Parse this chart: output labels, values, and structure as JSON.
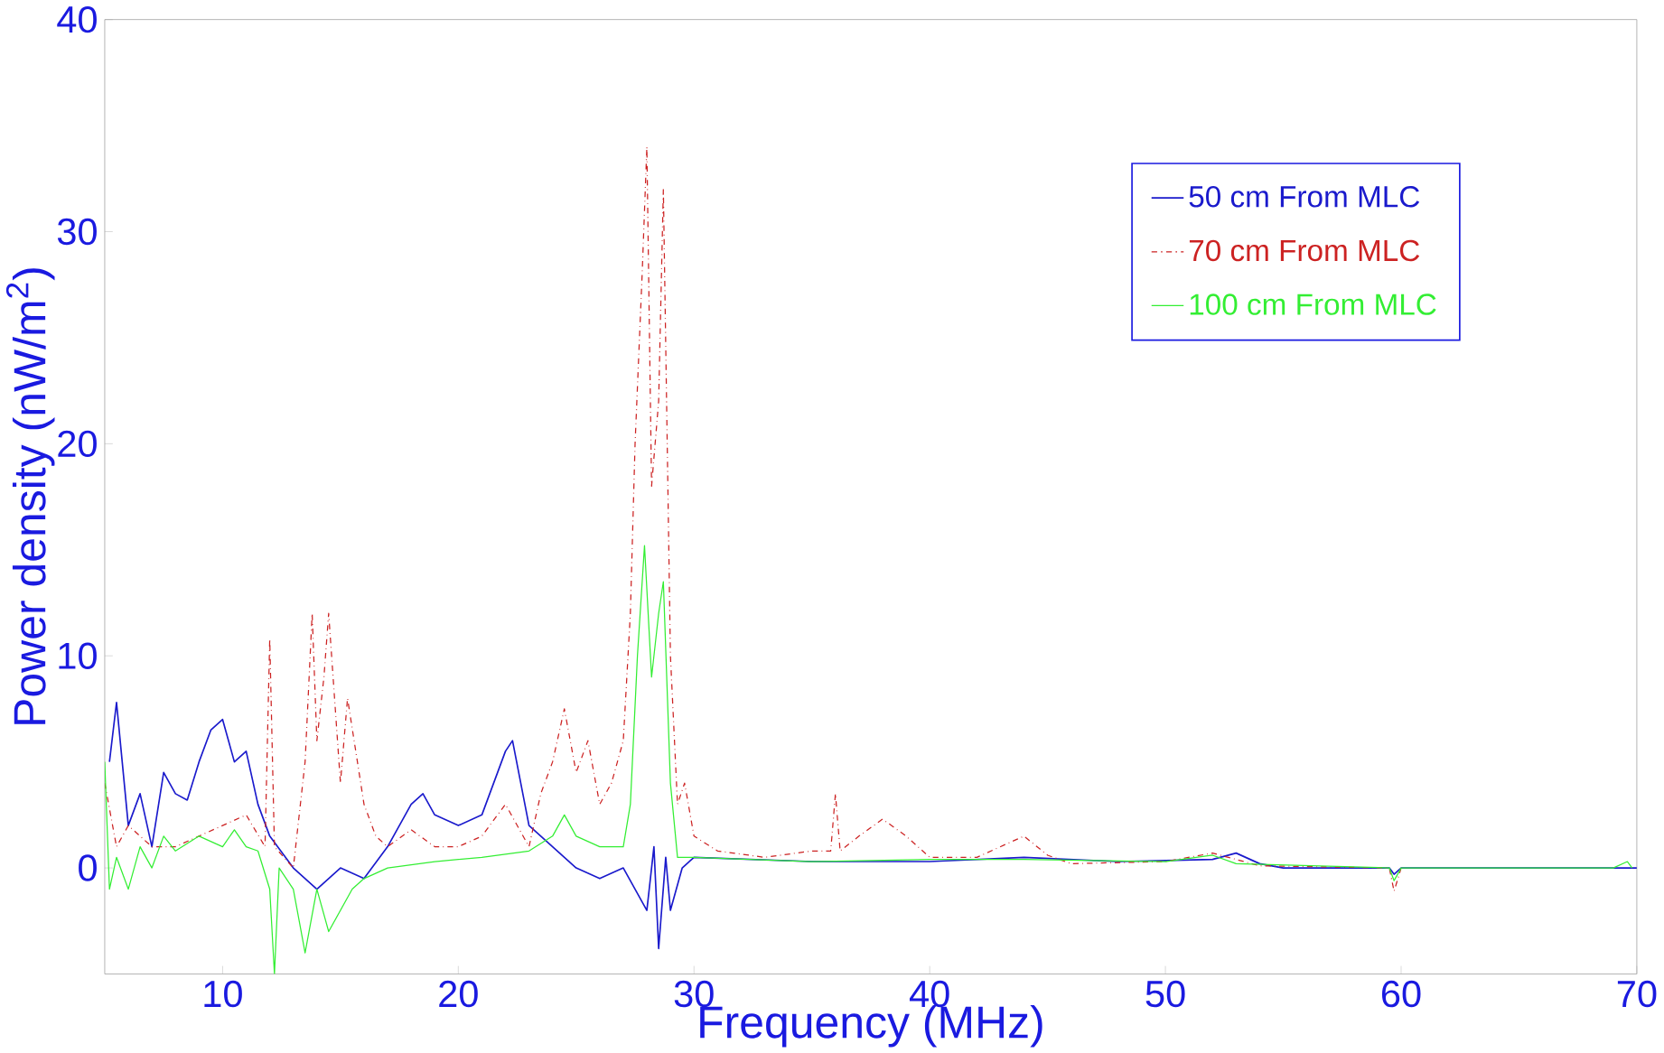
{
  "chart_data": {
    "type": "line",
    "xlabel": "Frequency (MHz)",
    "ylabel": "Power density (nW/m$^{2}$)",
    "xlim": [
      5,
      70
    ],
    "ylim": [
      -5,
      40
    ],
    "xticks": [
      10,
      20,
      30,
      40,
      50,
      60,
      70
    ],
    "yticks": [
      0,
      10,
      20,
      30,
      40
    ],
    "grid": false,
    "legend": "top right",
    "line_style": "solid",
    "series": [
      {
        "name": "50 cm From MLC",
        "color": "#1a1acc",
        "x": [
          5.2,
          5.5,
          6,
          6.5,
          7,
          7.5,
          8,
          8.5,
          9,
          9.5,
          10,
          10.5,
          11,
          11.5,
          12,
          13,
          14,
          15,
          16,
          17,
          18,
          18.5,
          19,
          20,
          21,
          22,
          22.3,
          23,
          24,
          25,
          26,
          27,
          28,
          28.3,
          28.5,
          28.8,
          29,
          29.5,
          30,
          35,
          40,
          44,
          48,
          52,
          53,
          54,
          55,
          59.5,
          59.7,
          60,
          70
        ],
        "values": [
          5,
          7.8,
          2,
          3.5,
          1,
          4.5,
          3.5,
          3.2,
          5,
          6.5,
          7,
          5,
          5.5,
          3,
          1.5,
          0,
          -1,
          0,
          -0.5,
          1,
          3,
          3.5,
          2.5,
          2,
          2.5,
          5.5,
          6,
          2,
          1,
          0,
          -0.5,
          0,
          -2,
          1,
          -3.8,
          0.5,
          -2,
          0,
          0.5,
          0.3,
          0.3,
          0.5,
          0.3,
          0.4,
          0.7,
          0.2,
          0,
          0,
          -0.3,
          0,
          0
        ]
      },
      {
        "name": "70 cm From MLC",
        "color": "#cc2222",
        "line_style": "dashed",
        "x": [
          5,
          5.5,
          6,
          7,
          8,
          9,
          10,
          11,
          11.8,
          12,
          12.2,
          13,
          13.5,
          13.8,
          14,
          14.3,
          14.5,
          15,
          15.3,
          16,
          16.5,
          17,
          18,
          19,
          20,
          21,
          22,
          23,
          23.5,
          24,
          24.5,
          25,
          25.5,
          26,
          26.5,
          27,
          27.3,
          27.5,
          27.8,
          28,
          28.2,
          28.5,
          28.7,
          29,
          29.3,
          29.6,
          30,
          31,
          33,
          35,
          35.8,
          36,
          36.2,
          37,
          38,
          39,
          40,
          42,
          44,
          45,
          46,
          50,
          52,
          53,
          54,
          59.5,
          59.7,
          60
        ],
        "values": [
          4,
          1,
          2,
          1,
          1,
          1.5,
          2,
          2.5,
          1,
          10.8,
          1,
          0,
          5,
          12,
          6,
          9,
          12,
          4,
          8,
          3,
          1.5,
          1,
          1.8,
          1,
          1,
          1.5,
          3,
          1,
          3.5,
          5,
          7.5,
          4.5,
          6,
          3,
          4,
          6,
          12,
          20,
          28,
          34,
          18,
          22,
          32,
          10,
          3,
          4,
          1.5,
          0.8,
          0.5,
          0.8,
          0.8,
          3.5,
          0.8,
          1.5,
          2.3,
          1.5,
          0.5,
          0.5,
          1.5,
          0.6,
          0.2,
          0.3,
          0.7,
          0.4,
          0.1,
          0,
          -1.1,
          0
        ]
      },
      {
        "name": "100 cm From MLC",
        "color": "#33ee33",
        "x": [
          5,
          5.2,
          5.5,
          6,
          6.5,
          7,
          7.5,
          8,
          9,
          10,
          10.5,
          11,
          11.5,
          12,
          12.2,
          12.4,
          13,
          13.5,
          14,
          14.5,
          15,
          15.5,
          16,
          17,
          19,
          21,
          23,
          24,
          24.5,
          25,
          26,
          27,
          27.3,
          27.6,
          27.9,
          28.2,
          28.5,
          28.7,
          29,
          29.3,
          30,
          35,
          40,
          44,
          50,
          52,
          53,
          59.5,
          59.7,
          60,
          69,
          69.6,
          69.8
        ],
        "values": [
          5,
          -1,
          0.5,
          -1,
          1,
          0,
          1.5,
          0.8,
          1.5,
          1,
          1.8,
          1,
          0.8,
          -1,
          -5,
          0,
          -1,
          -4,
          -1,
          -3,
          -2,
          -1,
          -0.5,
          0,
          0.3,
          0.5,
          0.8,
          1.5,
          2.5,
          1.5,
          1,
          1,
          3,
          10,
          15.2,
          9,
          12,
          13.5,
          4,
          0.5,
          0.5,
          0.3,
          0.4,
          0.4,
          0.3,
          0.6,
          0.2,
          0,
          -0.6,
          0,
          0,
          0.3,
          0
        ]
      }
    ]
  }
}
